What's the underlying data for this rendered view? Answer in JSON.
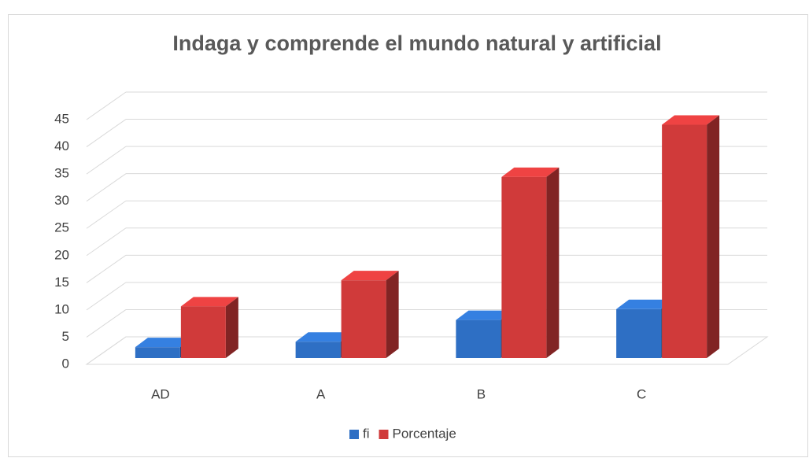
{
  "chart_data": {
    "type": "bar3d",
    "title": "Indaga y comprende el mundo natural y artificial",
    "categories": [
      "AD",
      "A",
      "B",
      "C"
    ],
    "series": [
      {
        "name": "fi",
        "color": "#2e6fc4",
        "values": [
          2,
          3,
          7,
          9
        ]
      },
      {
        "name": "Porcentaje",
        "color": "#d03a3a",
        "values": [
          9.5,
          14.3,
          33.3,
          42.9
        ]
      }
    ],
    "ylim": [
      0,
      45
    ],
    "yticks": [
      0,
      5,
      10,
      15,
      20,
      25,
      30,
      35,
      40,
      45
    ],
    "grid": true,
    "legend": "bottom"
  }
}
